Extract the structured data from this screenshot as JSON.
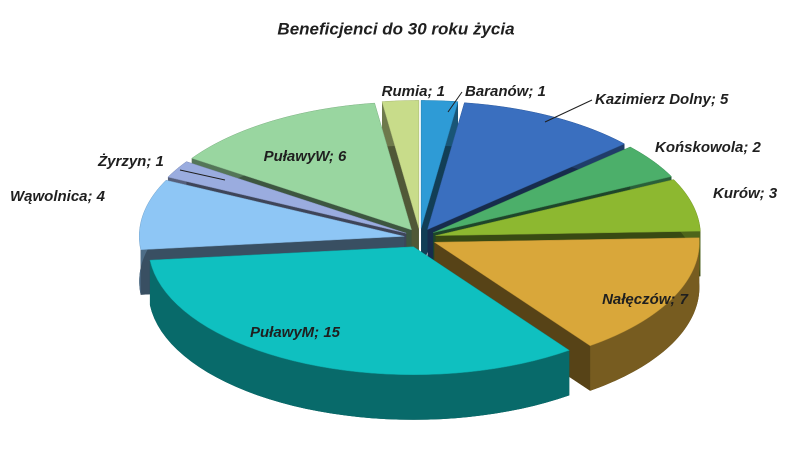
{
  "chart_data": {
    "type": "pie",
    "title": "Beneficjenci do 30 roku życia",
    "values": [
      1,
      5,
      2,
      3,
      7,
      15,
      4,
      1,
      6,
      1
    ],
    "value_labels": [
      "Baranów; 1",
      "Kazimierz Dolny; 5",
      "Końskowola; 2",
      "Kurów; 3",
      "Nałęczów; 7",
      "PuławyM; 15",
      "Wąwolnica; 4",
      "Żyrzyn; 1",
      "PuławyW; 6",
      "Rumia; 1"
    ],
    "colors": [
      "#2e9bd6",
      "#3a6fbf",
      "#4caf6a",
      "#8db830",
      "#d9a73a",
      "#0fc0c0",
      "#8ec6f5",
      "#9aacdf",
      "#99d6a0",
      "#c8dc8a"
    ]
  }
}
